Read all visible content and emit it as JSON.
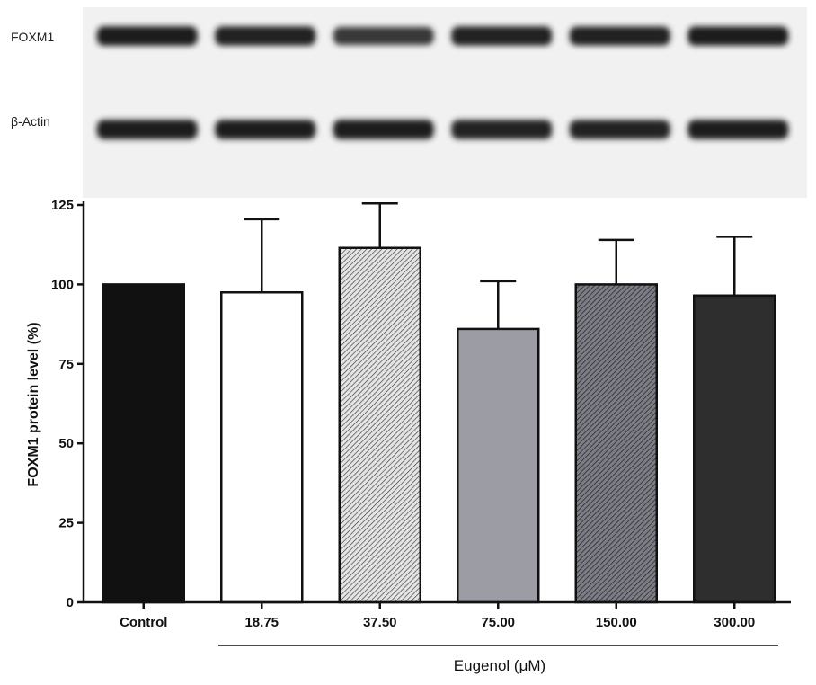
{
  "blot": {
    "rows": [
      {
        "label": "FOXM1",
        "intensity": [
          0.95,
          0.9,
          0.7,
          0.9,
          0.88,
          0.92
        ]
      },
      {
        "label": "β-Actin",
        "intensity": [
          0.95,
          0.92,
          0.95,
          0.9,
          0.88,
          0.93
        ]
      }
    ],
    "background": "#f1f1f1",
    "band_color": "#151515"
  },
  "chart_data": {
    "type": "bar",
    "categories": [
      "Control",
      "18.75",
      "37.50",
      "75.00",
      "150.00",
      "300.00"
    ],
    "values": [
      100,
      97.5,
      111.5,
      86,
      100,
      96.5
    ],
    "error_upper": [
      0,
      23,
      14,
      15,
      14,
      18.5
    ],
    "fills": [
      "#111111",
      "#ffffff",
      "hatch-light",
      "#9c9ca4",
      "hatch-dark",
      "#2e2e2e"
    ],
    "ylabel": "FOXM1 protein level (%)",
    "yticks": [
      0,
      25,
      50,
      75,
      100,
      125
    ],
    "ylim": [
      0,
      125
    ],
    "xlabel": "",
    "group_label": "Eugenol (μM)",
    "grid": false,
    "legend": "none"
  }
}
